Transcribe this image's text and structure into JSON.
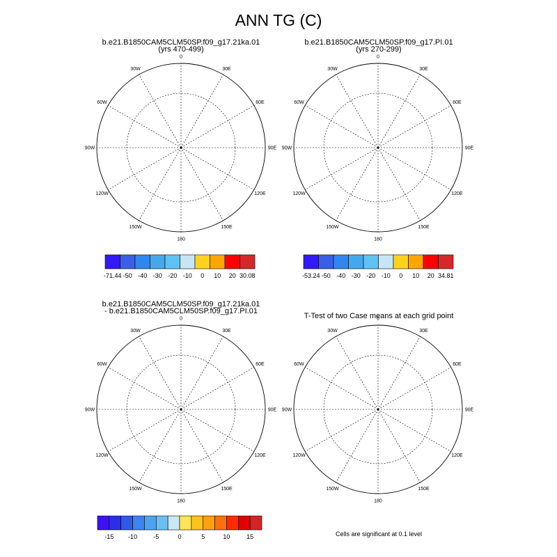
{
  "title": "ANN TG (C)",
  "panels": [
    {
      "id": "p1",
      "title_lines": [
        "b.e21.B1850CAM5CLM50SP.f09_g17.21ka.01",
        "(yrs 470-499)"
      ]
    },
    {
      "id": "p2",
      "title_lines": [
        "b.e21.B1850CAM5CLM50SP.f09_g17.PI.01",
        "(yrs 270-299)"
      ]
    },
    {
      "id": "p3",
      "title_lines": [
        "b.e21.B1850CAM5CLM50SP.f09_g17.21ka.01",
        "- b.e21.B1850CAM5CLM50SP.f09_g17.PI.01"
      ]
    },
    {
      "id": "p4",
      "title_lines": [
        "T-Test of two Case means at each grid point"
      ]
    }
  ],
  "longitude_labels": [
    "0",
    "30E",
    "60E",
    "90E",
    "120E",
    "150E",
    "180",
    "150W",
    "120W",
    "90W",
    "60W",
    "30W"
  ],
  "colorbars": [
    {
      "id": "cb1",
      "labels": [
        "-71.44",
        "-50",
        "-40",
        "-30",
        "-20",
        "-10",
        "0",
        "10",
        "20",
        "30.08"
      ],
      "colors": [
        "#3319f5",
        "#3a5ee8",
        "#2f86f0",
        "#45a8ec",
        "#5ec2f2",
        "#c6e6f5",
        "#ffd21e",
        "#ffa500",
        "#ff0000",
        "#d62828"
      ]
    },
    {
      "id": "cb2",
      "labels": [
        "-53.24",
        "-50",
        "-40",
        "-30",
        "-20",
        "-10",
        "0",
        "10",
        "20",
        "34.81"
      ],
      "colors": [
        "#3319f5",
        "#3a5ee8",
        "#2f86f0",
        "#45a8ec",
        "#5ec2f2",
        "#c6e6f5",
        "#ffd21e",
        "#ffa500",
        "#ff0000",
        "#d62828"
      ]
    },
    {
      "id": "cb3",
      "labels": [
        "-15",
        "-10",
        "-5",
        "0",
        "5",
        "10",
        "15"
      ],
      "colors": [
        "#3d12f2",
        "#2c2ee8",
        "#2f5ae6",
        "#3c84ee",
        "#4ea3ee",
        "#6bc0f2",
        "#c8e8f6",
        "#ffe45a",
        "#ffc21c",
        "#ffa010",
        "#ff7010",
        "#ff2a00",
        "#e00000",
        "#d42424"
      ]
    }
  ],
  "footnote": "Cells are significant at 0.1 level"
}
